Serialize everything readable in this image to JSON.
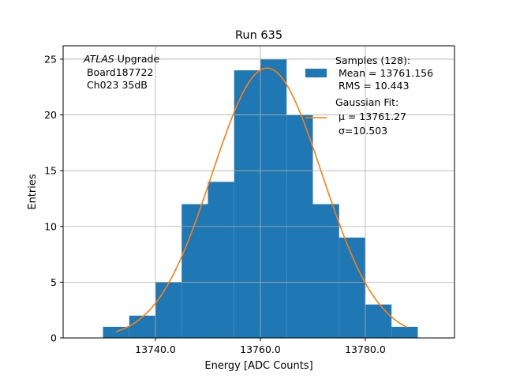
{
  "chart_data": {
    "type": "bar",
    "title": "Run 635",
    "xlabel": "Energy [ADC Counts]",
    "ylabel": "Entries",
    "xlim": [
      13722.4,
      13797.0
    ],
    "ylim": [
      0,
      26.2
    ],
    "xticks": [
      13740.0,
      13760.0,
      13780.0
    ],
    "xtick_labels": [
      "13740.0",
      "13760.0",
      "13780.0"
    ],
    "yticks": [
      0,
      5,
      10,
      15,
      20,
      25
    ],
    "ytick_labels": [
      "0",
      "5",
      "10",
      "15",
      "20",
      "25"
    ],
    "grid": true,
    "bins": [
      {
        "x0": 13730,
        "x1": 13735,
        "count": 1
      },
      {
        "x0": 13735,
        "x1": 13740,
        "count": 2
      },
      {
        "x0": 13740,
        "x1": 13745,
        "count": 5
      },
      {
        "x0": 13745,
        "x1": 13750,
        "count": 12
      },
      {
        "x0": 13750,
        "x1": 13755,
        "count": 14
      },
      {
        "x0": 13755,
        "x1": 13760,
        "count": 24
      },
      {
        "x0": 13760,
        "x1": 13765,
        "count": 25
      },
      {
        "x0": 13765,
        "x1": 13770,
        "count": 20
      },
      {
        "x0": 13770,
        "x1": 13775,
        "count": 12
      },
      {
        "x0": 13775,
        "x1": 13780,
        "count": 9
      },
      {
        "x0": 13780,
        "x1": 13785,
        "count": 3
      },
      {
        "x0": 13785,
        "x1": 13790,
        "count": 1
      }
    ],
    "fit": {
      "amplitude": 24.2,
      "mu": 13761.27,
      "sigma": 10.503,
      "x_range": [
        13732.5,
        13788.0
      ]
    },
    "colors": {
      "bars": "#1f77b4",
      "fit": "#ff7f0e",
      "grid": "#b0b0b0"
    },
    "legend": {
      "placement": "top-right",
      "samples_lines": [
        "Samples (128):",
        " Mean = 13761.156",
        " RMS = 10.443"
      ],
      "fit_lines": [
        "Gaussian Fit:",
        " μ = 13761.27",
        " σ=10.503"
      ]
    },
    "annotation": {
      "placement": "top-left",
      "atlas": "ATLAS",
      "upgrade": " Upgrade",
      "lines": [
        " Board187722",
        " Ch023 35dB"
      ]
    }
  }
}
